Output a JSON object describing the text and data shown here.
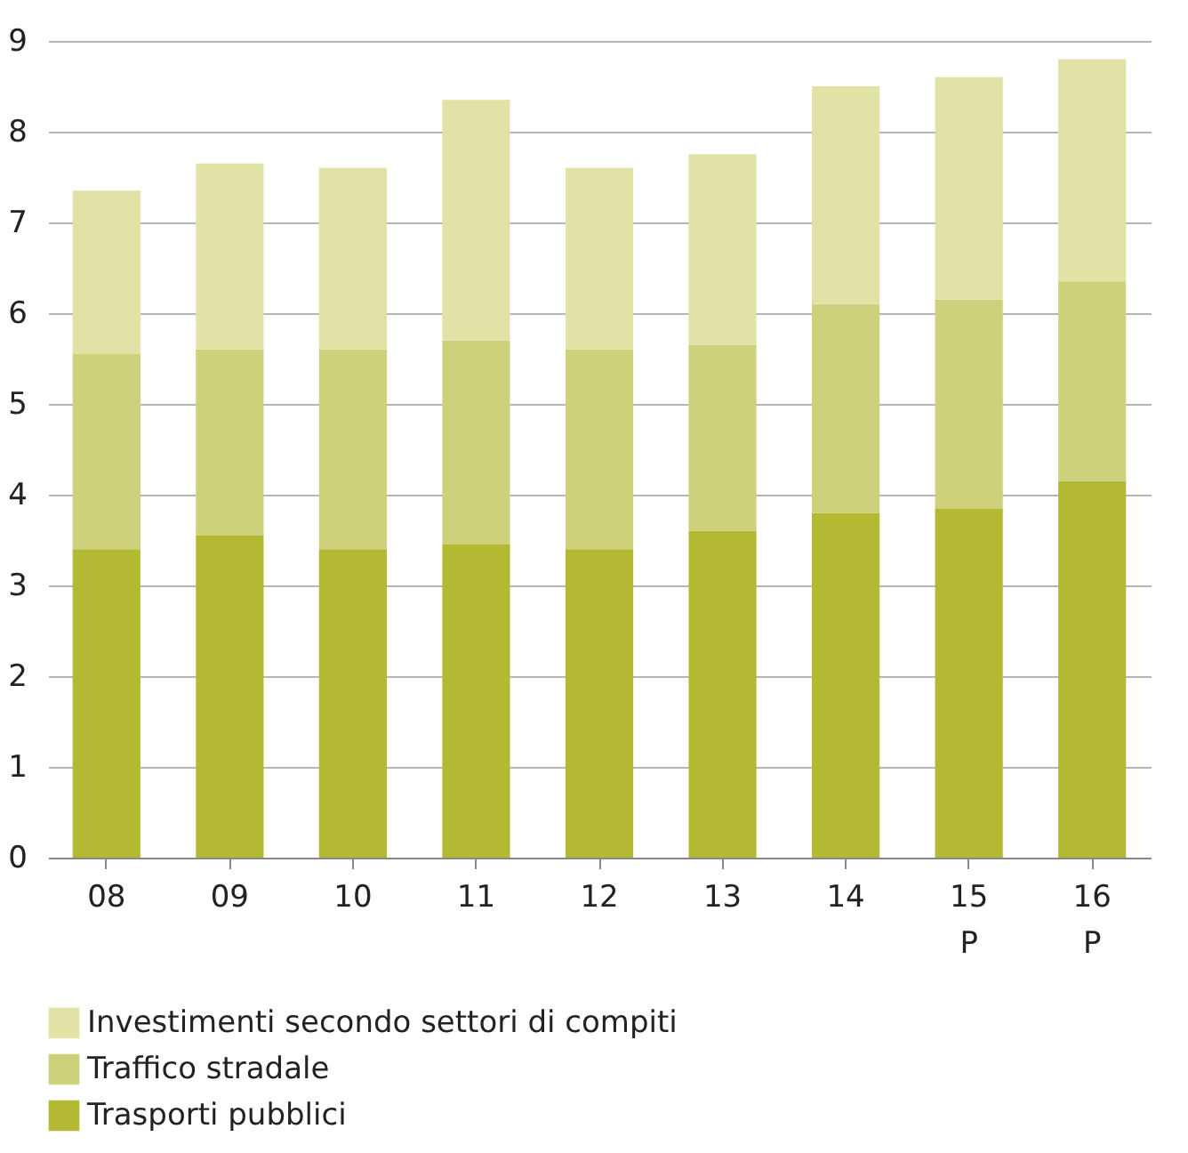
{
  "chart_data": {
    "type": "bar",
    "stacked": true,
    "categories": [
      "08",
      "09",
      "10",
      "11",
      "12",
      "13",
      "14",
      "15\nP",
      "16\nP"
    ],
    "series": [
      {
        "name": "Trasporti pubblici",
        "color": "#b4b934",
        "values": [
          3.4,
          3.55,
          3.4,
          3.45,
          3.4,
          3.6,
          3.8,
          3.85,
          4.15
        ]
      },
      {
        "name": "Traffico stradale",
        "color": "#cdd17b",
        "values": [
          2.15,
          2.05,
          2.2,
          2.25,
          2.2,
          2.05,
          2.3,
          2.3,
          2.2
        ]
      },
      {
        "name": "Investimenti secondo settori di compiti",
        "color": "#e1e2a6",
        "values": [
          1.8,
          2.05,
          2.0,
          2.65,
          2.0,
          2.1,
          2.4,
          2.45,
          2.45
        ]
      }
    ],
    "ylim": [
      0,
      9
    ],
    "yticks": [
      0,
      1,
      2,
      3,
      4,
      5,
      6,
      7,
      8,
      9
    ],
    "grid": "y",
    "legend": "bottom"
  }
}
